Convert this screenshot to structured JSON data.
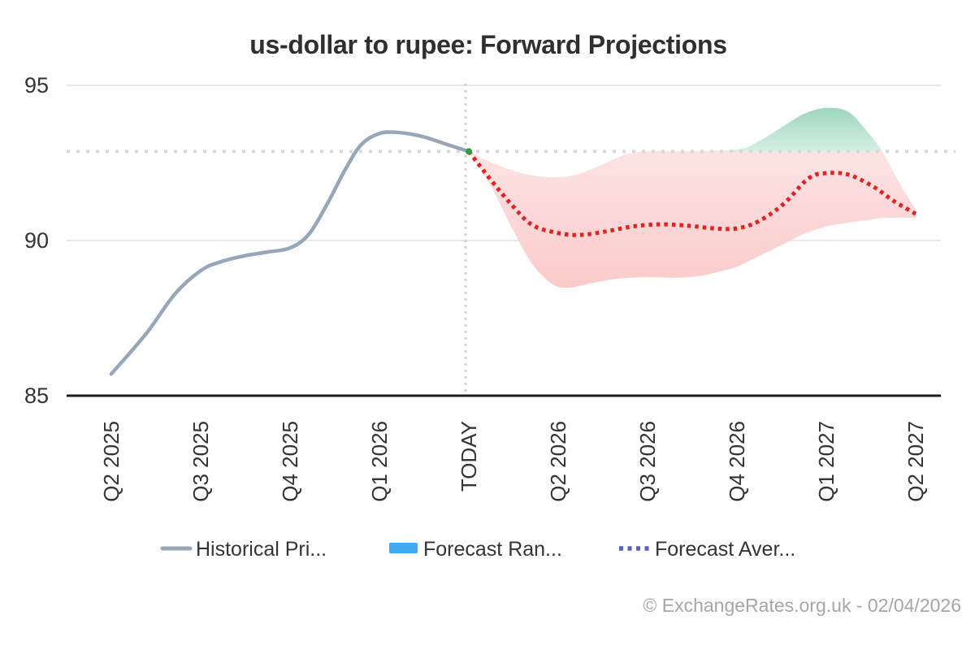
{
  "title": "us-dollar to rupee: Forward Projections",
  "watermark": "© ExchangeRates.org.uk - 02/04/2026",
  "legend": {
    "items": [
      {
        "label": "Historical Pri...",
        "swatch": "line"
      },
      {
        "label": "Forecast Ran...",
        "swatch": "box"
      },
      {
        "label": "Forecast Aver...",
        "swatch": "dots"
      }
    ]
  },
  "colors": {
    "historical_line": "#98a6ba",
    "forecast_avg_line": "#e32222",
    "band_below_top": "#fce3e3",
    "band_below_bottom": "#fbcaca",
    "band_above_top": "#9bd5bc",
    "band_above_bottom": "#d7f0e5",
    "grid_line": "#e8e8e8",
    "axis_line": "#1c1c1c",
    "guide_dotted": "#d8d8d8",
    "today_vertical": "#d2d2d2",
    "today_marker": "#2f9e45",
    "legend_range_swatch": "#41a9f1",
    "legend_avg_swatch": "#5b5fc3",
    "text_dark": "#343434",
    "text_gray": "#a6a6a6"
  },
  "chart_data": {
    "type": "line",
    "title": "us-dollar to rupee: Forward Projections",
    "xlabel": "",
    "ylabel": "",
    "grid": true,
    "legend_position": "bottom",
    "categories": [
      "Q2 2025",
      "Q3 2025",
      "Q4 2025",
      "Q1 2026",
      "TODAY",
      "Q2 2026",
      "Q3 2026",
      "Q4 2026",
      "Q1 2027",
      "Q2 2027"
    ],
    "y_ticks": [
      85,
      90,
      95
    ],
    "ylim": [
      85,
      95.5
    ],
    "today_index": 4,
    "today_value": 92.87,
    "series": [
      {
        "name": "Historical Price",
        "style": "solid",
        "points": [
          [
            0,
            85.7
          ],
          [
            0.39,
            87.0
          ],
          [
            0.71,
            88.27
          ],
          [
            1,
            89.03
          ],
          [
            1.21,
            89.3
          ],
          [
            1.48,
            89.5
          ],
          [
            1.75,
            89.63
          ],
          [
            2,
            89.76
          ],
          [
            2.21,
            90.2
          ],
          [
            2.42,
            91.2
          ],
          [
            2.62,
            92.3
          ],
          [
            2.8,
            93.1
          ],
          [
            3,
            93.45
          ],
          [
            3.21,
            93.48
          ],
          [
            3.48,
            93.35
          ],
          [
            3.75,
            93.1
          ],
          [
            4,
            92.87
          ]
        ]
      },
      {
        "name": "Forecast Average",
        "style": "dotted",
        "points": [
          [
            4,
            92.87
          ],
          [
            4.25,
            91.94
          ],
          [
            4.48,
            91.15
          ],
          [
            4.71,
            90.5
          ],
          [
            5,
            90.24
          ],
          [
            5.25,
            90.18
          ],
          [
            5.53,
            90.29
          ],
          [
            5.8,
            90.44
          ],
          [
            6,
            90.5
          ],
          [
            6.21,
            90.52
          ],
          [
            6.48,
            90.47
          ],
          [
            6.75,
            90.39
          ],
          [
            7,
            90.39
          ],
          [
            7.25,
            90.63
          ],
          [
            7.53,
            91.2
          ],
          [
            7.8,
            92.0
          ],
          [
            8,
            92.17
          ],
          [
            8.25,
            92.12
          ],
          [
            8.53,
            91.73
          ],
          [
            8.75,
            91.28
          ],
          [
            9,
            90.86
          ]
        ]
      },
      {
        "name": "Forecast Range Upper",
        "style": "band-upper",
        "points": [
          [
            4,
            92.87
          ],
          [
            4.3,
            92.46
          ],
          [
            4.62,
            92.15
          ],
          [
            4.94,
            92.04
          ],
          [
            5.21,
            92.12
          ],
          [
            5.48,
            92.43
          ],
          [
            5.75,
            92.77
          ],
          [
            6,
            92.88
          ],
          [
            6.48,
            92.88
          ],
          [
            7,
            92.93
          ],
          [
            7.21,
            93.14
          ],
          [
            7.48,
            93.61
          ],
          [
            7.75,
            94.08
          ],
          [
            8,
            94.27
          ],
          [
            8.25,
            94.14
          ],
          [
            8.48,
            93.43
          ],
          [
            8.62,
            92.9
          ],
          [
            8.8,
            91.94
          ],
          [
            9,
            91.0
          ]
        ]
      },
      {
        "name": "Forecast Range Lower",
        "style": "band-lower",
        "points": [
          [
            4,
            92.87
          ],
          [
            4.25,
            91.73
          ],
          [
            4.48,
            90.42
          ],
          [
            4.71,
            89.24
          ],
          [
            4.94,
            88.59
          ],
          [
            5.12,
            88.48
          ],
          [
            5.39,
            88.64
          ],
          [
            5.66,
            88.77
          ],
          [
            6,
            88.82
          ],
          [
            6.3,
            88.8
          ],
          [
            6.57,
            88.85
          ],
          [
            6.85,
            89.03
          ],
          [
            7,
            89.16
          ],
          [
            7.25,
            89.5
          ],
          [
            7.53,
            89.9
          ],
          [
            7.75,
            90.21
          ],
          [
            8.03,
            90.47
          ],
          [
            8.39,
            90.63
          ],
          [
            8.66,
            90.73
          ],
          [
            9,
            90.73
          ]
        ]
      }
    ]
  }
}
